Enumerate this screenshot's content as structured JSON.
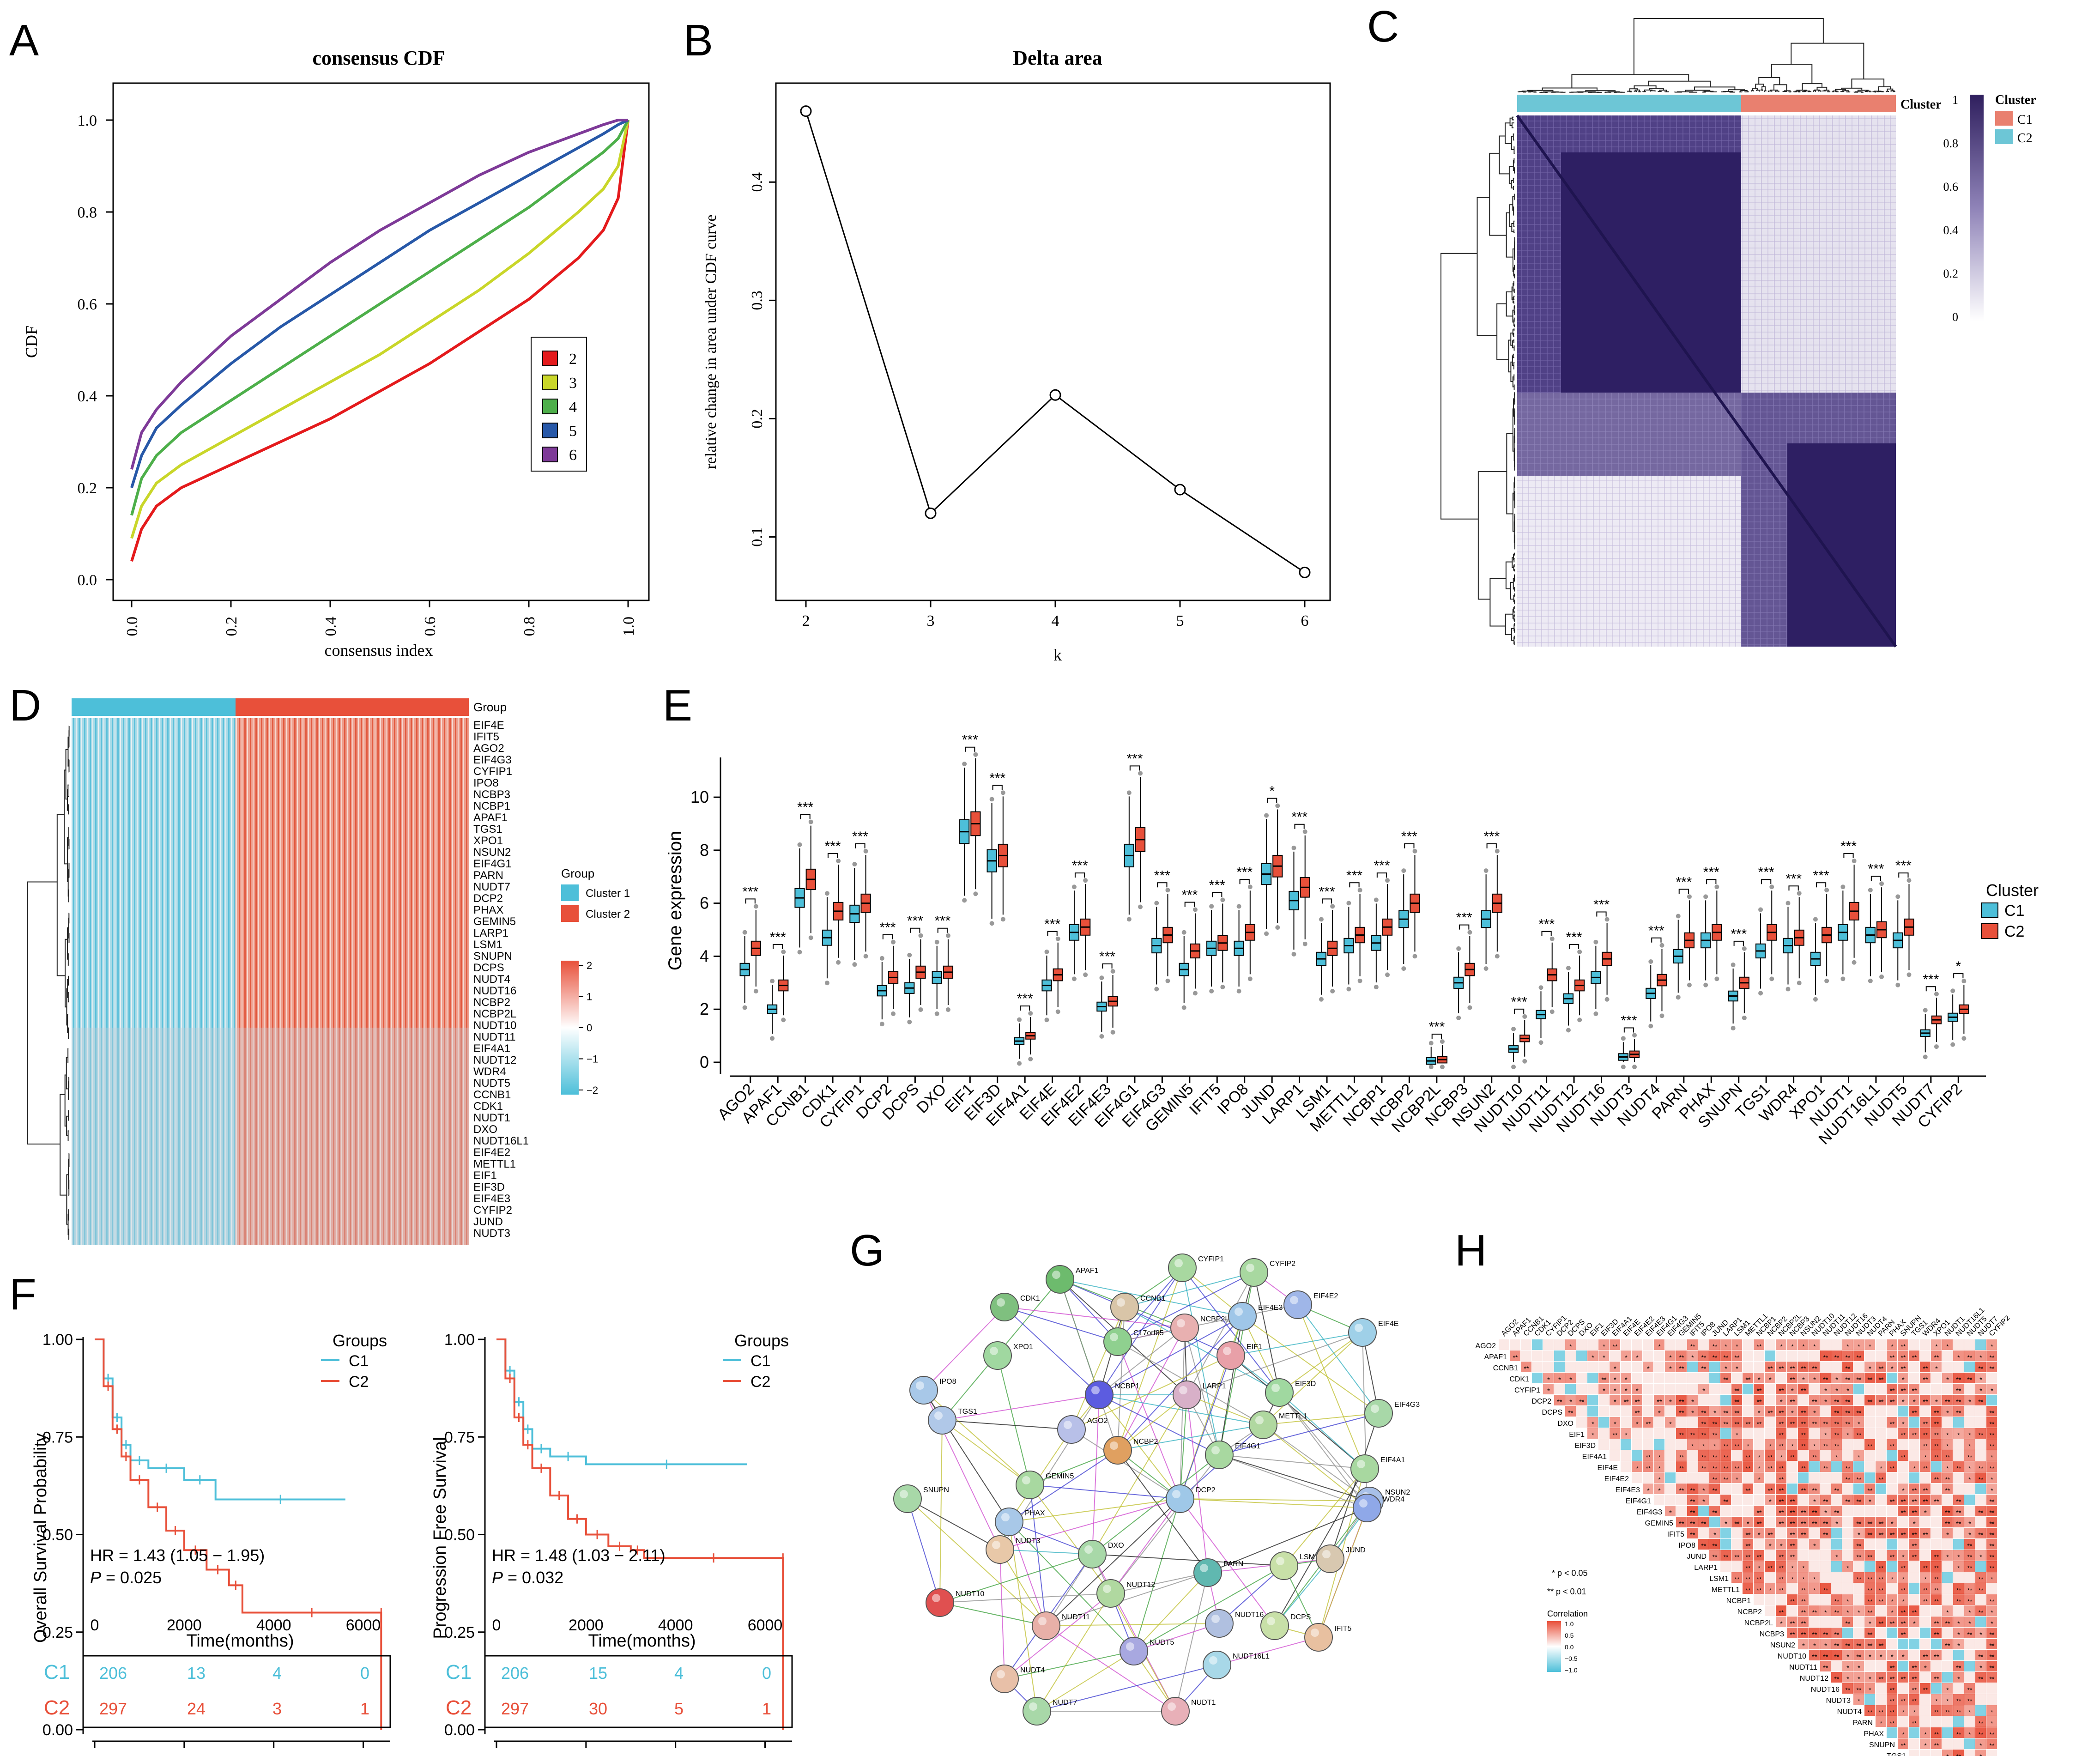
{
  "panels": {
    "A": "A",
    "B": "B",
    "C": "C",
    "D": "D",
    "E": "E",
    "F": "F",
    "G": "G",
    "H": "H"
  },
  "panelA": {
    "chart_data": {
      "type": "line",
      "title": "consensus CDF",
      "xlabel": "consensus index",
      "ylabel": "CDF",
      "xlim": [
        0,
        1
      ],
      "ylim": [
        0,
        1
      ],
      "xticks": [
        "0.0",
        "0.2",
        "0.4",
        "0.6",
        "0.8",
        "1.0"
      ],
      "yticks": [
        "0.0",
        "0.2",
        "0.4",
        "0.6",
        "0.8",
        "1.0"
      ],
      "x": [
        0.0,
        0.02,
        0.05,
        0.1,
        0.2,
        0.3,
        0.4,
        0.5,
        0.6,
        0.7,
        0.8,
        0.9,
        0.95,
        0.98,
        1.0
      ],
      "series": [
        {
          "name": "2",
          "color": "#e41a1c",
          "values": [
            0.04,
            0.11,
            0.16,
            0.2,
            0.25,
            0.3,
            0.35,
            0.41,
            0.47,
            0.54,
            0.61,
            0.7,
            0.76,
            0.83,
            1.0
          ]
        },
        {
          "name": "3",
          "color": "#c9d629",
          "values": [
            0.09,
            0.16,
            0.21,
            0.25,
            0.31,
            0.37,
            0.43,
            0.49,
            0.56,
            0.63,
            0.71,
            0.8,
            0.85,
            0.9,
            1.0
          ]
        },
        {
          "name": "4",
          "color": "#4daf4a",
          "values": [
            0.14,
            0.22,
            0.27,
            0.32,
            0.39,
            0.46,
            0.53,
            0.6,
            0.67,
            0.74,
            0.81,
            0.89,
            0.93,
            0.96,
            1.0
          ]
        },
        {
          "name": "5",
          "color": "#2758a8",
          "values": [
            0.2,
            0.27,
            0.33,
            0.38,
            0.47,
            0.55,
            0.62,
            0.69,
            0.76,
            0.82,
            0.88,
            0.94,
            0.97,
            0.99,
            1.0
          ]
        },
        {
          "name": "6",
          "color": "#7e3a98",
          "values": [
            0.24,
            0.32,
            0.37,
            0.43,
            0.53,
            0.61,
            0.69,
            0.76,
            0.82,
            0.88,
            0.93,
            0.97,
            0.99,
            1.0,
            1.0
          ]
        }
      ],
      "legend": [
        "2",
        "3",
        "4",
        "5",
        "6"
      ]
    }
  },
  "panelB": {
    "chart_data": {
      "type": "line",
      "title": "Delta area",
      "xlabel": "k",
      "ylabel": "relative change in area under CDF curve",
      "x": [
        2,
        3,
        4,
        5,
        6
      ],
      "values": [
        0.46,
        0.12,
        0.22,
        0.14,
        0.07
      ],
      "xticks": [
        "2",
        "3",
        "4",
        "5",
        "6"
      ],
      "yticks": [
        "0.1",
        "0.2",
        "0.3",
        "0.4"
      ],
      "ylim": [
        0.06,
        0.47
      ]
    }
  },
  "panelC": {
    "cluster_label": "Cluster",
    "legend_title": "Cluster",
    "legend": [
      {
        "name": "C1",
        "color": "#e9806f"
      },
      {
        "name": "C2",
        "color": "#6dc6d6"
      }
    ],
    "scale_ticks": [
      "1",
      "0.8",
      "0.6",
      "0.4",
      "0.2",
      "0"
    ]
  },
  "panelD": {
    "group_label": "Group",
    "legend_title": "Group",
    "legend": [
      {
        "name": "Cluster 1",
        "color": "#4dbfd9"
      },
      {
        "name": "Cluster 2",
        "color": "#e8503a"
      }
    ],
    "scale_ticks": [
      "2",
      "1",
      "0",
      "−1",
      "−2"
    ],
    "genes": [
      "EIF4E",
      "IFIT5",
      "AGO2",
      "EIF4G3",
      "CYFIP1",
      "IPO8",
      "NCBP3",
      "NCBP1",
      "APAF1",
      "TGS1",
      "XPO1",
      "NSUN2",
      "EIF4G1",
      "PARN",
      "NUDT7",
      "DCP2",
      "PHAX",
      "GEMIN5",
      "LARP1",
      "LSM1",
      "SNUPN",
      "DCPS",
      "NUDT4",
      "NUDT16",
      "NCBP2",
      "NCBP2L",
      "NUDT10",
      "NUDT11",
      "EIF4A1",
      "NUDT12",
      "WDR4",
      "NUDT5",
      "CCNB1",
      "CDK1",
      "NUDT1",
      "DXO",
      "NUDT16L1",
      "EIF4E2",
      "METTL1",
      "EIF1",
      "EIF3D",
      "EIF4E3",
      "CYFIP2",
      "JUND",
      "NUDT3"
    ]
  },
  "panelE": {
    "chart_data": {
      "type": "box",
      "ylabel": "Gene expression",
      "yticks": [
        "0",
        "2",
        "4",
        "6",
        "8",
        "10"
      ],
      "ylim": [
        0,
        11.5
      ],
      "legend_title": "Cluster",
      "legend": [
        {
          "name": "C1",
          "color": "#4dbfd9"
        },
        {
          "name": "C2",
          "color": "#e8503a"
        }
      ],
      "categories": [
        "AGO2",
        "APAF1",
        "CCNB1",
        "CDK1",
        "CYFIP1",
        "DCP2",
        "DCPS",
        "DXO",
        "EIF1",
        "EIF3D",
        "EIF4A1",
        "EIF4E",
        "EIF4E2",
        "EIF4E3",
        "EIF4G1",
        "EIF4G3",
        "GEMIN5",
        "IFIT5",
        "IPO8",
        "JUND",
        "LARP1",
        "LSM1",
        "METTL1",
        "NCBP1",
        "NCBP2",
        "NCBP2L",
        "NCBP3",
        "NSUN2",
        "NUDT10",
        "NUDT11",
        "NUDT12",
        "NUDT16",
        "NUDT3",
        "NUDT4",
        "PARN",
        "PHAX",
        "SNUPN",
        "TGS1",
        "WDR4",
        "XPO1",
        "NUDT1",
        "NUDT16L1",
        "NUDT5",
        "NUDT7",
        "CYFIP2"
      ],
      "series": [
        {
          "name": "C1",
          "medians": [
            3.5,
            2.0,
            6.2,
            4.7,
            5.6,
            2.7,
            2.8,
            3.2,
            8.7,
            7.6,
            0.8,
            2.9,
            4.9,
            2.1,
            7.8,
            4.4,
            3.5,
            4.3,
            4.3,
            7.1,
            6.1,
            3.9,
            4.4,
            4.5,
            5.4,
            0.05,
            3.0,
            5.4,
            0.5,
            1.8,
            2.4,
            3.2,
            0.2,
            2.6,
            4.0,
            4.6,
            2.5,
            4.2,
            4.4,
            3.9,
            4.9,
            4.8,
            4.6,
            1.1,
            1.7
          ]
        },
        {
          "name": "C2",
          "medians": [
            4.3,
            2.9,
            6.9,
            5.7,
            6.0,
            3.2,
            3.4,
            3.4,
            9.0,
            7.8,
            1.0,
            3.3,
            5.1,
            2.3,
            8.4,
            4.8,
            4.2,
            4.5,
            4.9,
            7.4,
            6.6,
            4.3,
            4.8,
            5.1,
            6.0,
            0.1,
            3.5,
            6.0,
            0.9,
            3.3,
            2.9,
            3.9,
            0.3,
            3.1,
            4.6,
            4.9,
            3.0,
            4.9,
            4.7,
            4.8,
            5.7,
            5.0,
            5.1,
            1.6,
            2.0
          ]
        }
      ],
      "significance": [
        "***",
        "***",
        "***",
        "***",
        "***",
        "***",
        "***",
        "***",
        "***",
        "***",
        "***",
        "***",
        "***",
        "***",
        "***",
        "***",
        "***",
        "***",
        "***",
        "*",
        "***",
        "***",
        "***",
        "***",
        "***",
        "***",
        "***",
        "***",
        "***",
        "***",
        "***",
        "***",
        "***",
        "***",
        "***",
        "***",
        "***",
        "***",
        "***",
        "***",
        "***",
        "***",
        "***",
        "***",
        "*"
      ]
    }
  },
  "panelF": {
    "plots": [
      {
        "ylabel": "Overall Survival Probability",
        "xlabel": "Time(months)",
        "hr": "HR = 1.43 (1.05 − 1.95)",
        "p_prefix": "P",
        "p_value": " = 0.025",
        "legend_title": "Groups",
        "c1_label": "C1",
        "c2_label": "C2",
        "risk_c1": [
          "206",
          "13",
          "4",
          "0"
        ],
        "risk_c2": [
          "297",
          "24",
          "3",
          "1"
        ],
        "chart_data": {
          "type": "line",
          "xlim": [
            0,
            6500
          ],
          "ylim": [
            0,
            1
          ],
          "xticks": [
            "0",
            "2000",
            "4000",
            "6000"
          ],
          "yticks": [
            "0.00",
            "0.25",
            "0.50",
            "0.75",
            "1.00"
          ],
          "series": [
            {
              "name": "C1",
              "color": "#4dbfd9",
              "x": [
                0,
                200,
                400,
                600,
                800,
                1200,
                2000,
                2700,
                5600
              ],
              "values": [
                1.0,
                0.9,
                0.8,
                0.73,
                0.69,
                0.67,
                0.64,
                0.59,
                0.59
              ]
            },
            {
              "name": "C2",
              "color": "#e8503a",
              "x": [
                0,
                200,
                400,
                600,
                800,
                1200,
                1600,
                2000,
                2500,
                3000,
                3300,
                6400,
                6400
              ],
              "values": [
                1.0,
                0.88,
                0.77,
                0.7,
                0.64,
                0.57,
                0.51,
                0.46,
                0.41,
                0.37,
                0.3,
                0.3,
                0.0
              ]
            }
          ]
        }
      },
      {
        "ylabel": "Progression Free Survival",
        "xlabel": "Time(months)",
        "hr": "HR = 1.48 (1.03 − 2.11)",
        "p_prefix": "P",
        "p_value": " = 0.032",
        "legend_title": "Groups",
        "c1_label": "C1",
        "c2_label": "C2",
        "risk_c1": [
          "206",
          "15",
          "4",
          "0"
        ],
        "risk_c2": [
          "297",
          "30",
          "5",
          "1"
        ],
        "chart_data": {
          "type": "line",
          "xlim": [
            0,
            6500
          ],
          "ylim": [
            0,
            1
          ],
          "xticks": [
            "0",
            "2000",
            "4000",
            "6000"
          ],
          "yticks": [
            "0.00",
            "0.25",
            "0.50",
            "0.75",
            "1.00"
          ],
          "series": [
            {
              "name": "C1",
              "color": "#4dbfd9",
              "x": [
                0,
                200,
                400,
                600,
                800,
                1200,
                2000,
                5600
              ],
              "values": [
                1.0,
                0.92,
                0.84,
                0.77,
                0.72,
                0.7,
                0.68,
                0.68
              ]
            },
            {
              "name": "C2",
              "color": "#e8503a",
              "x": [
                0,
                200,
                400,
                600,
                800,
                1200,
                1600,
                2000,
                2500,
                3000,
                3300,
                6400,
                6400
              ],
              "values": [
                1.0,
                0.9,
                0.8,
                0.73,
                0.67,
                0.6,
                0.54,
                0.5,
                0.47,
                0.46,
                0.44,
                0.44,
                0.0
              ]
            }
          ]
        }
      }
    ]
  },
  "panelG": {
    "nodes": [
      "APAF1",
      "CYFIP1",
      "CYFIP2",
      "CDK1",
      "CCNB1",
      "NCBP2L",
      "EIF4E3",
      "EIF4E2",
      "EIF4E",
      "XPO1",
      "C17orf85",
      "EIF1",
      "IPO8",
      "NCBP1",
      "LARP1",
      "EIF3D",
      "EIF4G3",
      "TGS1",
      "AGO2",
      "METTL1",
      "NCBP2",
      "EIF4G1",
      "EIF4A1",
      "SNUPN",
      "GEMIN5",
      "DCP2",
      "PHAX",
      "NSUN2",
      "WDR4",
      "NUDT3",
      "DXO",
      "PARN",
      "LSM1",
      "JUND",
      "NUDT10",
      "NUDT12",
      "NUDT16",
      "DCPS",
      "IFIT5",
      "NUDT11",
      "NUDT5",
      "NUDT16L1",
      "NUDT4",
      "NUDT7",
      "NUDT1"
    ],
    "colors": [
      "#6dbb6d",
      "#a8d8a0",
      "#a8d8a0",
      "#7fc07f",
      "#d9c5a8",
      "#e8b0b0",
      "#9fc6e8",
      "#9fb6e8",
      "#9fd0e8",
      "#a0d8a0",
      "#8fd08f",
      "#e8a0a8",
      "#a8c8e8",
      "#5c5ce0",
      "#d8b0c8",
      "#a0d8a0",
      "#a8d8a8",
      "#b0c8e8",
      "#b8c0e8",
      "#b0d8a0",
      "#e0a060",
      "#a8d8a0",
      "#a8d8a0",
      "#a8d8a8",
      "#a8d8a0",
      "#9fc8e8",
      "#a8c8e8",
      "#a8c0e8",
      "#8fa8e8",
      "#e8c8a8",
      "#a8d8a8",
      "#60b8b0",
      "#c8e0a8",
      "#d8c8b0",
      "#e05050",
      "#b0d8a0",
      "#b0c0e0",
      "#c8e0a8",
      "#e8c0a0",
      "#e8b0a8",
      "#a8a8e0",
      "#a8d8e8",
      "#e8c0a8",
      "#a8d8a8",
      "#e8b0b8"
    ]
  },
  "panelH": {
    "genes": [
      "AGO2",
      "APAF1",
      "CCNB1",
      "CDK1",
      "CYFIP1",
      "DCP2",
      "DCPS",
      "DXO",
      "EIF1",
      "EIF3D",
      "EIF4A1",
      "EIF4E",
      "EIF4E2",
      "EIF4E3",
      "EIF4G1",
      "EIF4G3",
      "GEMIN5",
      "IFIT5",
      "IPO8",
      "JUND",
      "LARP1",
      "LSM1",
      "METTL1",
      "NCBP1",
      "NCBP2",
      "NCBP2L",
      "NCBP3",
      "NSUN2",
      "NUDT10",
      "NUDT11",
      "NUDT12",
      "NUDT16",
      "NUDT3",
      "NUDT4",
      "PARN",
      "PHAX",
      "SNUPN",
      "TGS1",
      "WDR4",
      "XPO1",
      "NUDT1",
      "NUDT16L1",
      "NUDT5",
      "NUDT7",
      "CYFIP2"
    ],
    "note1": "* p < 0.05",
    "note2": "** p < 0.01",
    "legend_title": "Correlation",
    "scale_ticks": [
      "1.0",
      "0.5",
      "0.0",
      "−0.5",
      "−1.0"
    ]
  }
}
